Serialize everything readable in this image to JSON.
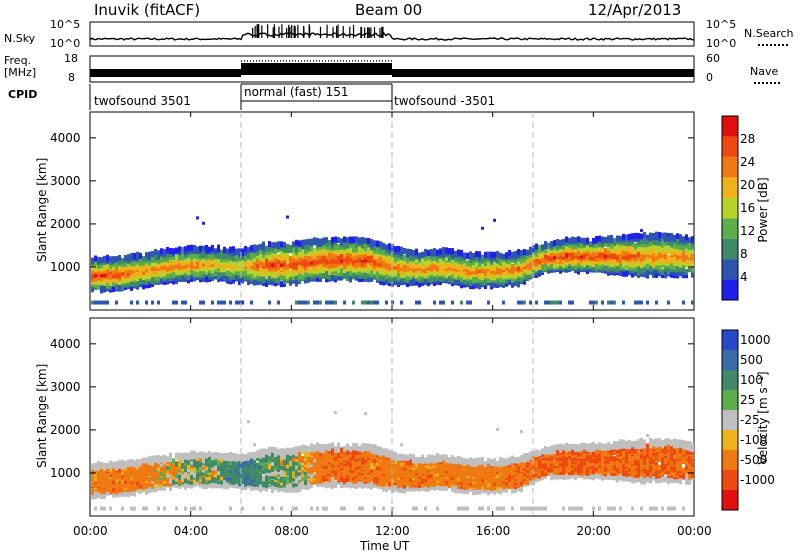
{
  "header": {
    "station": "Inuvik (fitACF)",
    "beam": "Beam 00",
    "date": "12/Apr/2013"
  },
  "noise_panel": {
    "left_label": "N.Sky",
    "left_ticks": [
      "10^5",
      "10^0"
    ],
    "right_label": "N.Search",
    "right_ticks": [
      "10^5",
      "10^0"
    ]
  },
  "freq_panel": {
    "left_label_1": "Freq.",
    "left_label_2": "[MHz]",
    "left_ticks": [
      "18",
      "8"
    ],
    "right_label": "Nave",
    "right_ticks": [
      "60",
      "0"
    ]
  },
  "cpid": {
    "label": "CPID",
    "segments": [
      {
        "name": "twofsound 3501",
        "start_hour": 0,
        "end_hour": 6
      },
      {
        "name": "normal (fast) 151",
        "start_hour": 6,
        "end_hour": 12
      },
      {
        "name": "twofsound -3501",
        "start_hour": 12,
        "end_hour": 24
      }
    ]
  },
  "chart_data": [
    {
      "type": "heatmap",
      "title": "",
      "xlabel": "Time UT",
      "ylabel": "Slant Range [km]",
      "xlim": [
        0,
        24
      ],
      "ylim": [
        0,
        4600
      ],
      "x_ticks": [
        "00:00",
        "04:00",
        "08:00",
        "12:00",
        "16:00",
        "20:00",
        "00:00"
      ],
      "y_ticks": [
        1000,
        2000,
        3000,
        4000
      ],
      "colorbar_label": "Power [dB]",
      "colorbar_ticks": [
        4,
        8,
        12,
        16,
        20,
        24,
        28
      ],
      "colorbar_colors": [
        "#2020e8",
        "#2e56b0",
        "#3f8a68",
        "#5cae4a",
        "#b8d22a",
        "#f0b21a",
        "#f07a12",
        "#ee4a10",
        "#e01010"
      ],
      "echo_band": {
        "hour": [
          0,
          1,
          2,
          3,
          4,
          5,
          6,
          7,
          8,
          9,
          10,
          11,
          12,
          13,
          14,
          15,
          16,
          17,
          18,
          19,
          20,
          21,
          22,
          23,
          24
        ],
        "center_km": [
          800,
          820,
          900,
          1000,
          1050,
          1050,
          1000,
          1050,
          1050,
          1150,
          1150,
          1150,
          1000,
          950,
          1000,
          900,
          900,
          950,
          1200,
          1250,
          1250,
          1250,
          1250,
          1250,
          1200
        ],
        "halfwidth_km": [
          350,
          350,
          350,
          350,
          350,
          350,
          350,
          450,
          450,
          450,
          450,
          450,
          400,
          350,
          350,
          350,
          350,
          350,
          300,
          350,
          350,
          400,
          450,
          450,
          400
        ],
        "peak_power_db": [
          28,
          28,
          24,
          24,
          24,
          20,
          20,
          28,
          28,
          28,
          28,
          28,
          24,
          24,
          24,
          24,
          24,
          24,
          28,
          28,
          28,
          28,
          24,
          24,
          24
        ]
      },
      "grid": false
    },
    {
      "type": "heatmap",
      "title": "",
      "xlabel": "Time UT",
      "ylabel": "Slant Range [km]",
      "xlim": [
        0,
        24
      ],
      "ylim": [
        0,
        4600
      ],
      "x_ticks": [
        "00:00",
        "04:00",
        "08:00",
        "12:00",
        "16:00",
        "20:00",
        "00:00"
      ],
      "y_ticks": [
        1000,
        2000,
        3000,
        4000
      ],
      "colorbar_label": "Velocity [m s⁻¹]",
      "colorbar_ticks": [
        1000,
        500,
        100,
        25,
        -25,
        -100,
        -500,
        -1000
      ],
      "colorbar_colors": [
        "#2848c8",
        "#3a6aa8",
        "#3f8a68",
        "#5cae4a",
        "#bfbfbf",
        "#f0b21a",
        "#f07a12",
        "#ee4a10",
        "#e01010"
      ],
      "echo_band": {
        "hour": [
          0,
          2,
          4,
          5,
          6,
          7,
          8,
          9,
          10,
          11,
          12,
          14,
          16,
          18,
          20,
          22,
          24
        ],
        "velocity_m_s": [
          -300,
          -300,
          100,
          100,
          500,
          200,
          100,
          -300,
          -500,
          -300,
          -300,
          -300,
          -300,
          -500,
          -500,
          -500,
          -500
        ]
      },
      "grid": false
    }
  ]
}
